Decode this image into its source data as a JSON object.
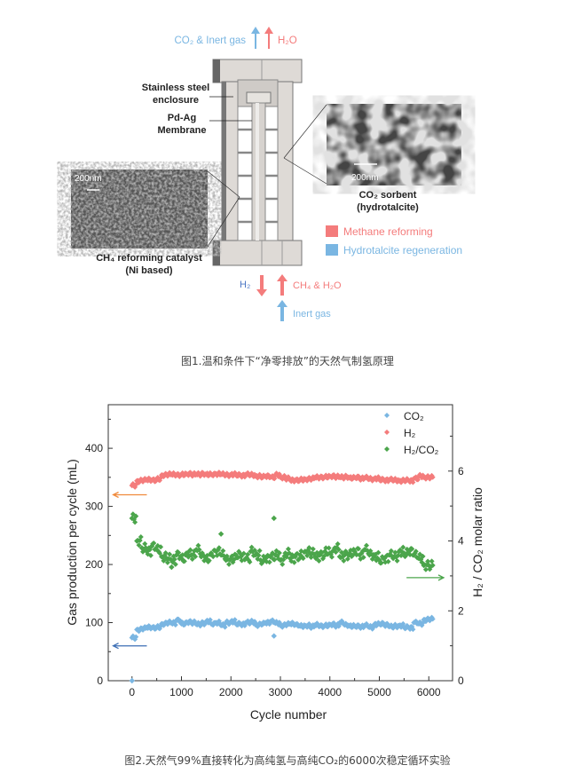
{
  "figure1": {
    "top_left_label": "CO₂ & Inert gas",
    "top_right_label": "H₂O",
    "enclosure_label_1": "Stainless steel",
    "enclosure_label_2": "enclosure",
    "membrane_label_1": "Pd-Ag",
    "membrane_label_2": "Membrane",
    "left_scale": "200nm",
    "right_scale": "200nm",
    "sorbent_label_1": "CO₂ sorbent",
    "sorbent_label_2": "(hydrotalcite)",
    "catalyst_label_1": "CH₄ reforming catalyst",
    "catalyst_label_2": "(Ni based)",
    "legend": [
      {
        "label": "Methane reforming",
        "color": "#f47c7c"
      },
      {
        "label": "Hydrotalcite regeneration",
        "color": "#7ab6e2"
      }
    ],
    "bottom_h2_label": "H₂",
    "bottom_feed_label": "CH₄ & H₂O",
    "bottom_inert_label": "Inert gas",
    "caption": "图1.温和条件下“净零排放”的天然气制氢原理"
  },
  "chart_data": {
    "type": "scatter",
    "xlabel": "Cycle number",
    "ylabel": "Gas production per cycle (mL)",
    "y2label": "H₂ / CO₂ molar ratio",
    "xlim": [
      -480,
      6480
    ],
    "ylim": [
      0,
      475
    ],
    "y2lim": [
      0,
      7.9
    ],
    "xticks": [
      0,
      1000,
      2000,
      3000,
      4000,
      5000,
      6000
    ],
    "yticks": [
      0,
      100,
      200,
      300,
      400
    ],
    "y2ticks": [
      0,
      2,
      4,
      6
    ],
    "legend_position": "top-right",
    "grid": false,
    "x": [
      0,
      100,
      200,
      300,
      400,
      500,
      600,
      700,
      800,
      900,
      1000,
      1100,
      1200,
      1300,
      1400,
      1500,
      1600,
      1700,
      1800,
      1900,
      2000,
      2100,
      2200,
      2300,
      2400,
      2500,
      2600,
      2700,
      2800,
      2900,
      3000,
      3100,
      3200,
      3300,
      3400,
      3500,
      3600,
      3700,
      3800,
      3900,
      4000,
      4100,
      4200,
      4300,
      4400,
      4500,
      4600,
      4700,
      4800,
      4900,
      5000,
      5100,
      5200,
      5300,
      5400,
      5500,
      5600,
      5700,
      5800,
      5900,
      6000
    ],
    "series": [
      {
        "name": "CO₂",
        "axis": "left",
        "color": "#7ab6e2",
        "values": [
          74,
          88,
          90,
          92,
          91,
          92,
          98,
          100,
          99,
          104,
          98,
          101,
          100,
          97,
          99,
          102,
          98,
          100,
          95,
          100,
          102,
          98,
          97,
          100,
          101,
          96,
          98,
          100,
          102,
          99,
          95,
          97,
          98,
          96,
          94,
          95,
          93,
          96,
          94,
          95,
          97,
          95,
          100,
          96,
          94,
          94,
          93,
          95,
          92,
          97,
          98,
          96,
          93,
          94,
          95,
          92,
          91,
          100,
          98,
          105,
          106
        ],
        "extra_points": [
          [
            0,
            0
          ],
          [
            2870,
            77
          ]
        ]
      },
      {
        "name": "H₂",
        "axis": "left",
        "color": "#f47c7c",
        "values": [
          336,
          344,
          345,
          346,
          345,
          347,
          354,
          355,
          355,
          354,
          355,
          356,
          355,
          355,
          356,
          355,
          355,
          356,
          355,
          354,
          355,
          354,
          353,
          355,
          354,
          352,
          351,
          352,
          350,
          354,
          350,
          348,
          345,
          345,
          346,
          347,
          348,
          350,
          350,
          351,
          352,
          351,
          350,
          351,
          349,
          350,
          348,
          349,
          347,
          348,
          346,
          345,
          346,
          345,
          344,
          345,
          344,
          348,
          352,
          350,
          350
        ],
        "extra_points": []
      },
      {
        "name": "H₂/CO₂",
        "axis": "right",
        "color": "#4ba54b",
        "values": [
          4.65,
          4.0,
          3.8,
          3.7,
          3.85,
          3.75,
          3.55,
          3.5,
          3.45,
          3.6,
          3.5,
          3.65,
          3.6,
          3.75,
          3.55,
          3.5,
          3.65,
          3.7,
          3.6,
          3.45,
          3.5,
          3.6,
          3.55,
          3.5,
          3.7,
          3.6,
          3.45,
          3.5,
          3.55,
          3.6,
          3.45,
          3.65,
          3.5,
          3.55,
          3.6,
          3.7,
          3.65,
          3.55,
          3.6,
          3.7,
          3.65,
          3.8,
          3.55,
          3.6,
          3.65,
          3.7,
          3.6,
          3.75,
          3.6,
          3.55,
          3.45,
          3.5,
          3.6,
          3.55,
          3.7,
          3.65,
          3.7,
          3.6,
          3.5,
          3.3,
          3.3
        ],
        "extra_points": [
          [
            2870,
            4.65
          ],
          [
            800,
            3.25
          ],
          [
            1800,
            4.2
          ]
        ]
      }
    ],
    "annotations": [
      {
        "type": "arrow-left",
        "axis": "left",
        "y": 320,
        "color": "#f08a3c"
      },
      {
        "type": "arrow-left",
        "axis": "left",
        "y": 60,
        "color": "#3d6fb5"
      },
      {
        "type": "arrow-right",
        "axis": "right",
        "y": 2.95,
        "color": "#4ba54b"
      }
    ]
  },
  "figure2": {
    "caption": "图2.天然气99%直接转化为高纯氢与高纯CO₂的6000次稳定循环实验"
  }
}
